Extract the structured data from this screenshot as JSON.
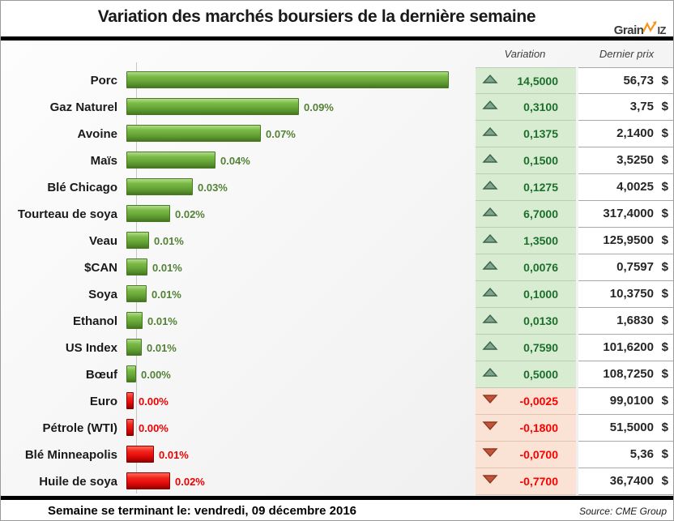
{
  "title": "Variation des marchés boursiers de la dernière semaine",
  "logo": {
    "part1": "Grain",
    "part2": "IZ",
    "accent_color": "#f7941d",
    "text_color": "#3a3a3a"
  },
  "table": {
    "col_variation": "Variation",
    "col_price": "Dernier prix",
    "currency": "$"
  },
  "footer": {
    "left": "Semaine se terminant le:  vendredi, 09 décembre 2016",
    "source": "Source: CME Group"
  },
  "colors": {
    "bar_up": "#69a939",
    "bar_down": "#e60e0e",
    "up_cell_bg": "#d7ecd1",
    "down_cell_bg": "#fae3d4",
    "up_text": "#1d6e2d",
    "down_text": "#fb0000",
    "triangle_up_fill": "#7fa38d",
    "triangle_up_stroke": "#3a644b",
    "triangle_down_fill": "#c2543b",
    "triangle_down_stroke": "#8f3a1f",
    "axis_line": "#c6c6c6"
  },
  "chart_data": {
    "type": "bar",
    "orientation": "horizontal",
    "title": "Variation des marchés boursiers de la dernière semaine",
    "xlabel": "",
    "ylabel": "",
    "legend": "none",
    "grid": "single vertical zero axis",
    "note": "bar length encodes variation/price ratio; Porc bar is clipped at plot edge with no visible label",
    "categories": [
      "Porc",
      "Gaz Naturel",
      "Avoine",
      "Maïs",
      "Blé Chicago",
      "Tourteau de soya",
      "Veau",
      "$CAN",
      "Soya",
      "Ethanol",
      "US Index",
      "Bœuf",
      "Euro",
      "Pétrole (WTI)",
      "Blé Minneapolis",
      "Huile de soya"
    ],
    "rows": [
      {
        "category": "Porc",
        "bar_label": "",
        "ratio": 0.2556,
        "direction": "up",
        "variation": "14,5000",
        "price": "56,73"
      },
      {
        "category": "Gaz Naturel",
        "bar_label": "0.09%",
        "ratio": 0.0827,
        "direction": "up",
        "variation": "0,3100",
        "price": "3,75"
      },
      {
        "category": "Avoine",
        "bar_label": "0.07%",
        "ratio": 0.0643,
        "direction": "up",
        "variation": "0,1375",
        "price": "2,1400"
      },
      {
        "category": "Maïs",
        "bar_label": "0.04%",
        "ratio": 0.0426,
        "direction": "up",
        "variation": "0,1500",
        "price": "3,5250"
      },
      {
        "category": "Blé Chicago",
        "bar_label": "0.03%",
        "ratio": 0.0319,
        "direction": "up",
        "variation": "0,1275",
        "price": "4,0025"
      },
      {
        "category": "Tourteau de soya",
        "bar_label": "0.02%",
        "ratio": 0.0211,
        "direction": "up",
        "variation": "6,7000",
        "price": "317,4000"
      },
      {
        "category": "Veau",
        "bar_label": "0.01%",
        "ratio": 0.0107,
        "direction": "up",
        "variation": "1,3500",
        "price": "125,9500"
      },
      {
        "category": "$CAN",
        "bar_label": "0.01%",
        "ratio": 0.01,
        "direction": "up",
        "variation": "0,0076",
        "price": "0,7597"
      },
      {
        "category": "Soya",
        "bar_label": "0.01%",
        "ratio": 0.0096,
        "direction": "up",
        "variation": "0,1000",
        "price": "10,3750"
      },
      {
        "category": "Ethanol",
        "bar_label": "0.01%",
        "ratio": 0.0077,
        "direction": "up",
        "variation": "0,0130",
        "price": "1,6830"
      },
      {
        "category": "US Index",
        "bar_label": "0.01%",
        "ratio": 0.0075,
        "direction": "up",
        "variation": "0,7590",
        "price": "101,6200"
      },
      {
        "category": "Bœuf",
        "bar_label": "0.00%",
        "ratio": 0.0046,
        "direction": "up",
        "variation": "0,5000",
        "price": "108,7250"
      },
      {
        "category": "Euro",
        "bar_label": "0.00%",
        "ratio": 3e-05,
        "direction": "down",
        "variation": "-0,0025",
        "price": "99,0100"
      },
      {
        "category": "Pétrole (WTI)",
        "bar_label": "0.00%",
        "ratio": 0.0035,
        "direction": "down",
        "variation": "-0,1800",
        "price": "51,5000"
      },
      {
        "category": "Blé Minneapolis",
        "bar_label": "0.01%",
        "ratio": 0.0131,
        "direction": "down",
        "variation": "-0,0700",
        "price": "5,36"
      },
      {
        "category": "Huile de soya",
        "bar_label": "0.02%",
        "ratio": 0.021,
        "direction": "down",
        "variation": "-0,7700",
        "price": "36,7400"
      }
    ]
  }
}
